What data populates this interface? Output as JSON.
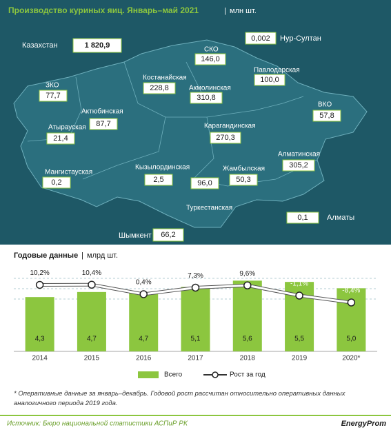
{
  "header": {
    "title": "Производство куриных яиц. Январь–май 2021",
    "unit": "млн шт."
  },
  "map": {
    "total": {
      "label": "Казахстан",
      "value": "1 820,9"
    },
    "regions": [
      {
        "label": "Нур-Султан",
        "value": "0,002"
      },
      {
        "label": "СКО",
        "value": "146,0"
      },
      {
        "label": "Павлодарская",
        "value": "100,0"
      },
      {
        "label": "Костанайская",
        "value": "228,8"
      },
      {
        "label": "Акмолинская",
        "value": "310,8"
      },
      {
        "label": "ЗКО",
        "value": "77,7"
      },
      {
        "label": "ВКО",
        "value": "57,8"
      },
      {
        "label": "Актюбинская",
        "value": "87,7"
      },
      {
        "label": "Атырауская",
        "value": "21,4"
      },
      {
        "label": "Карагандинская",
        "value": "270,3"
      },
      {
        "label": "Алматинская",
        "value": "305,2"
      },
      {
        "label": "Мангистауская",
        "value": "0,2"
      },
      {
        "label": "Кызылординская",
        "value": "2,5"
      },
      {
        "label": "Жамбылская",
        "value": "50,3"
      },
      {
        "label": "Туркестанская",
        "value": "96,0"
      },
      {
        "label": "Алматы",
        "value": "0,1"
      },
      {
        "label": "Шымкент",
        "value": "66,2"
      }
    ]
  },
  "chart_data": {
    "type": "bar",
    "title": "Годовые данные",
    "unit": "млрд шт.",
    "categories": [
      "2014",
      "2015",
      "2016",
      "2017",
      "2018",
      "2019",
      "2020*"
    ],
    "series": [
      {
        "name": "Всего",
        "color": "#8cc63f",
        "values": [
          4.3,
          4.7,
          4.7,
          5.1,
          5.6,
          5.5,
          5.0
        ],
        "value_labels": [
          "4,3",
          "4,7",
          "4,7",
          "5,1",
          "5,6",
          "5,5",
          "5,0"
        ]
      },
      {
        "name": "Рост за год",
        "type": "line",
        "axis": "y2",
        "color": "#ffffff",
        "values": [
          10.2,
          10.4,
          0.4,
          7.3,
          9.6,
          -1.1,
          -8.4
        ],
        "value_labels": [
          "10,2%",
          "10,4%",
          "0,4%",
          "7,3%",
          "9,6%",
          "-1,1%",
          "-8,4%"
        ]
      }
    ],
    "ylim": [
      0,
      6
    ],
    "y2lim": [
      -60,
      20
    ]
  },
  "footnote": "* Оперативные данные за январь–декабрь. Годовой рост рассчитан относительно оперативных данных аналогичного периода 2019 года.",
  "source": "Источник: Бюро национальной статистики АСПиР РК",
  "logo": "EnergyProm"
}
